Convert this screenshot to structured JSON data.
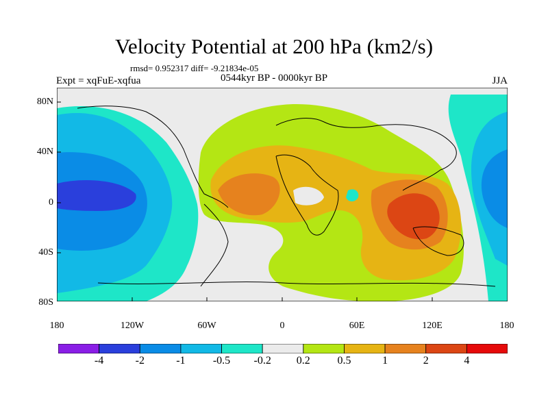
{
  "title": "Velocity Potential at 200 hPa (km2/s)",
  "stats": "rmsd= 0.952317 diff= -9.21834e-05",
  "experiment": "Expt = xqFuE-xqfua",
  "period": "0544kyr BP - 0000kyr BP",
  "season": "JJA",
  "lat_labels": [
    "80N",
    "40N",
    "0",
    "40S",
    "80S"
  ],
  "lon_labels": [
    "180",
    "120W",
    "60W",
    "0",
    "60E",
    "120E",
    "180"
  ],
  "colorbar": {
    "labels": [
      "-4",
      "-2",
      "-1",
      "-0.5",
      "-0.2",
      "0.2",
      "0.5",
      "1",
      "2",
      "4"
    ],
    "colors": [
      "#8a1ee6",
      "#2a3fdc",
      "#0a8ce6",
      "#12b9e6",
      "#1ee6c8",
      "#ebebeb",
      "#b4e614",
      "#e6b414",
      "#e6821e",
      "#dc4614",
      "#e60a0a"
    ]
  }
}
